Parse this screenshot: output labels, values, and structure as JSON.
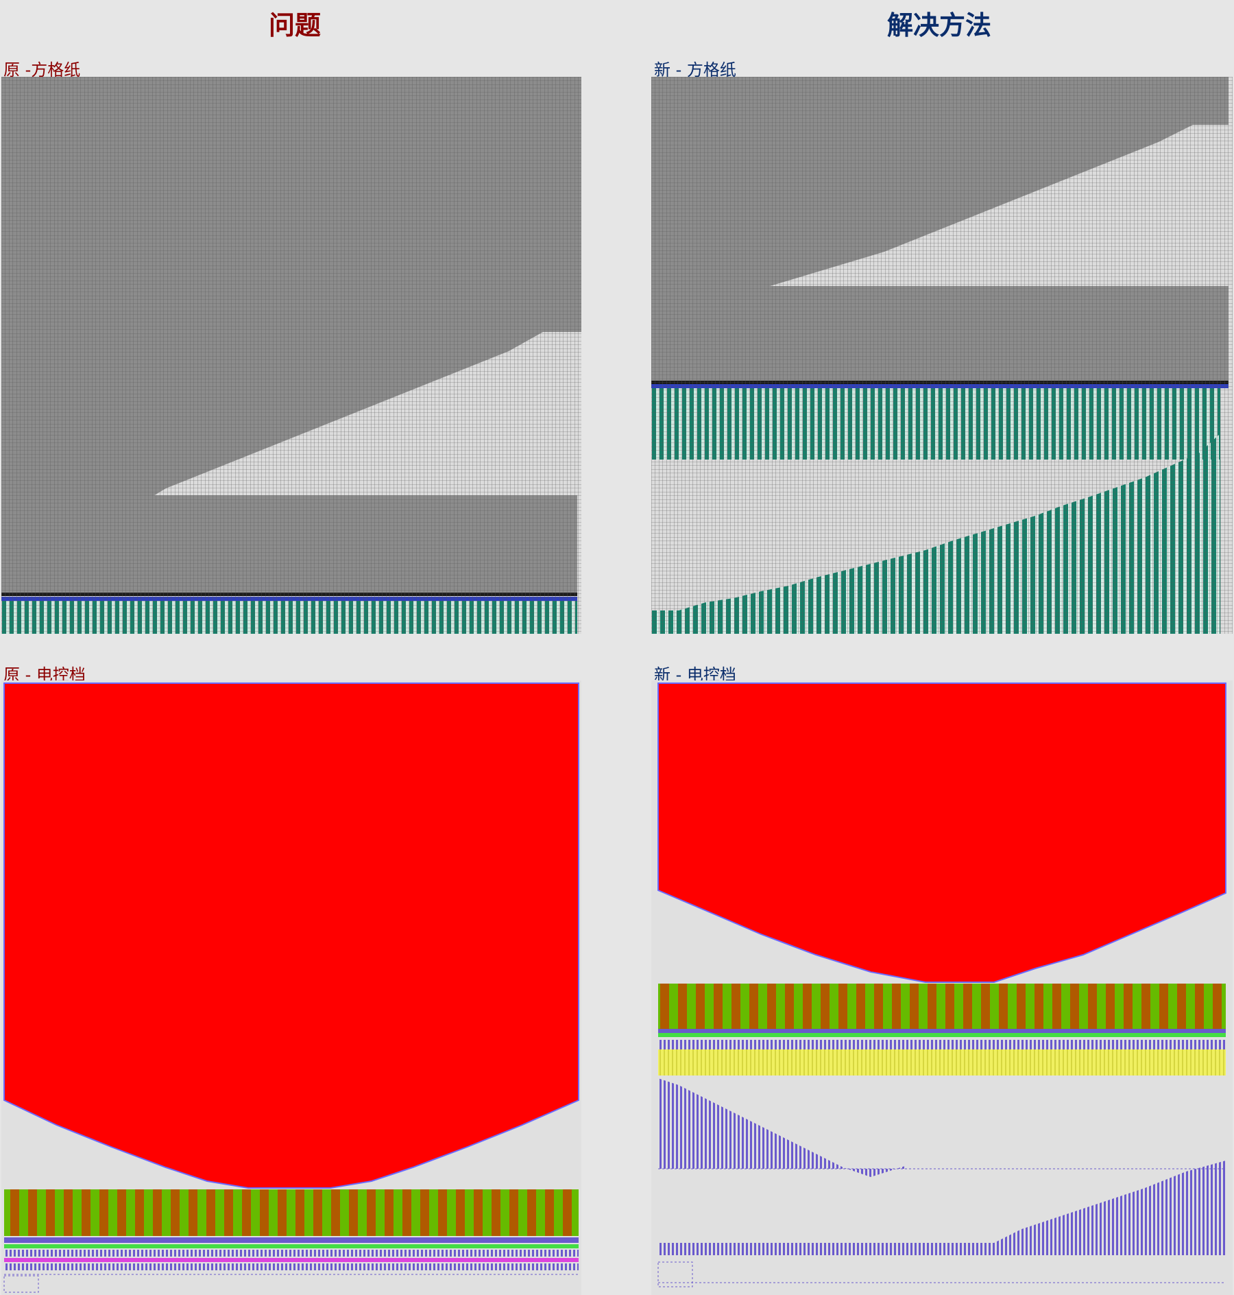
{
  "columns": {
    "left_title": "问题",
    "right_title": "解决方法"
  },
  "panels": {
    "orig_grid_label": "原 -方格纸",
    "new_grid_label": "新 - 方格纸",
    "orig_ctrl_label": "原 - 电控档",
    "new_ctrl_label": "新 - 电控档"
  },
  "colors": {
    "problem": "#8b0000",
    "solution": "#0b2d6b",
    "dark_cell": "#8c8c8c",
    "light_cell": "#dcdcdc",
    "teal": "#16806a",
    "red_fill": "#ff0000",
    "green": "#66bb00",
    "brown": "#b05a00",
    "yellow": "#f0f060",
    "purple": "#6a5acd",
    "background": "#e6e6e6"
  }
}
